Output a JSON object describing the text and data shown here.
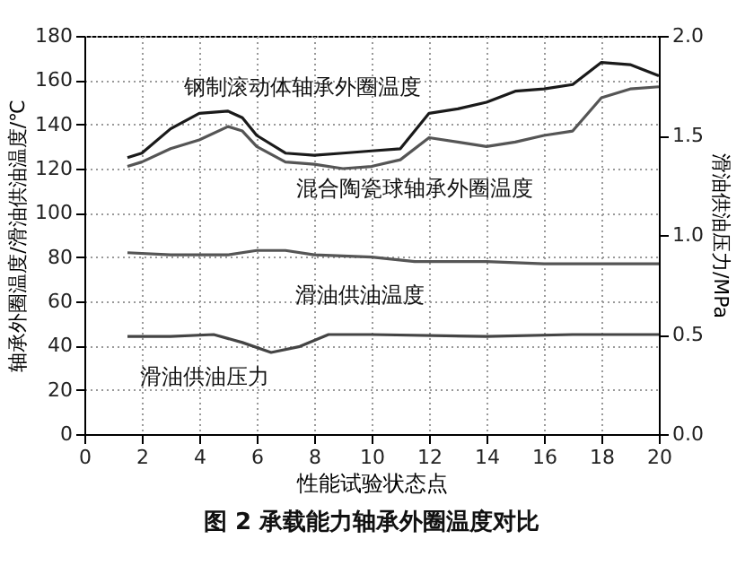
{
  "chart_data": {
    "type": "line",
    "title": "图 2  承载能力轴承外圈温度对比",
    "xlabel": "性能试验状态点",
    "ylabel": "轴承外圈温度/滑油供油温度/℃",
    "y2label": "滑油供油压力/MPa",
    "xlim": [
      0,
      20
    ],
    "xticks": [
      0,
      2,
      4,
      6,
      8,
      10,
      12,
      14,
      16,
      18,
      20
    ],
    "ylim": [
      0,
      180
    ],
    "yticks": [
      0,
      20,
      40,
      60,
      80,
      100,
      120,
      140,
      160,
      180
    ],
    "y2lim": [
      0,
      2
    ],
    "y2ticks": [
      {
        "value": 0,
        "label": "0.0"
      },
      {
        "value": 0.5,
        "label": "0.5"
      },
      {
        "value": 1,
        "label": "1.0"
      },
      {
        "value": 1.5,
        "label": "1.5"
      },
      {
        "value": 2,
        "label": "2.0"
      }
    ],
    "grid": true,
    "marker": "none",
    "line_style": "solid",
    "series": [
      {
        "name": "钢制滚动体轴承外圈温度",
        "color": "#1a1a1a",
        "x": [
          1.5,
          2,
          3,
          4,
          5,
          5.5,
          6,
          7,
          8,
          9,
          10,
          11,
          12,
          13,
          14,
          15,
          16,
          17,
          18,
          19,
          20
        ],
        "values": [
          125,
          127,
          138,
          145,
          146,
          143,
          135,
          127,
          126,
          127,
          128,
          129,
          145,
          147,
          150,
          155,
          156,
          158,
          168,
          167,
          162
        ]
      },
      {
        "name": "混合陶瓷球轴承外圈温度",
        "color": "#555555",
        "x": [
          1.5,
          2,
          3,
          4,
          5,
          5.5,
          6,
          7,
          8,
          9,
          10,
          11,
          12,
          13,
          14,
          15,
          16,
          17,
          18,
          19,
          20
        ],
        "values": [
          121,
          123,
          129,
          133,
          139,
          137,
          130,
          123,
          122,
          120,
          121,
          124,
          134,
          132,
          130,
          132,
          135,
          137,
          152,
          156,
          157
        ]
      },
      {
        "name": "滑油供油温度",
        "color": "#555555",
        "x": [
          1.5,
          3,
          5,
          6,
          7,
          8,
          10,
          11.5,
          14,
          16,
          18,
          20
        ],
        "values": [
          82,
          81,
          81,
          83,
          83,
          81,
          80,
          78,
          78,
          77,
          77,
          77
        ]
      },
      {
        "name": "滑油供油压力",
        "color": "#444444",
        "axis": "y2",
        "x": [
          1.5,
          3,
          4.5,
          5.5,
          6.5,
          7.5,
          8.5,
          10,
          14,
          17,
          20
        ],
        "values": [
          0.49,
          0.49,
          0.5,
          0.46,
          0.41,
          0.44,
          0.5,
          0.5,
          0.49,
          0.5,
          0.5
        ]
      }
    ]
  }
}
